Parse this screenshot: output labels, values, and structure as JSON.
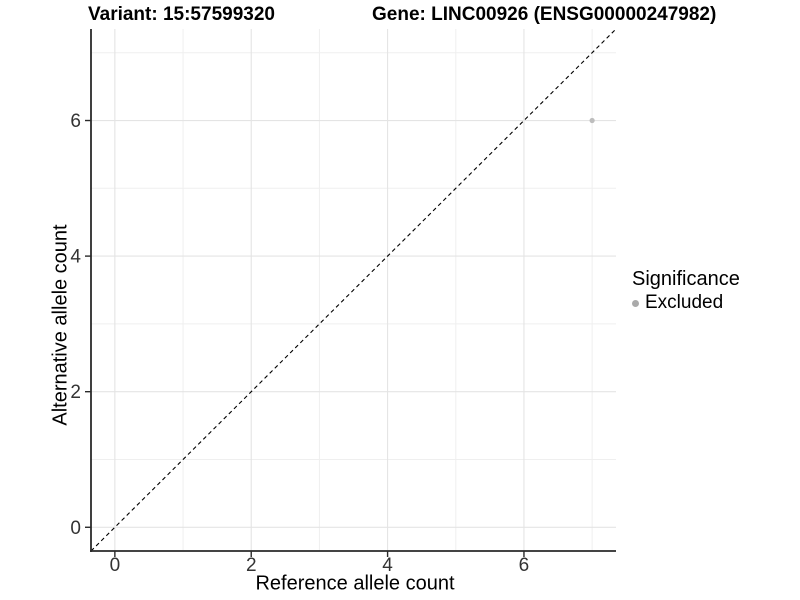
{
  "chart_data": {
    "type": "scatter",
    "titles": {
      "left": "Variant: 15:57599320",
      "right": "Gene: LINC00926 (ENSG00000247982)"
    },
    "xlabel": "Reference allele count",
    "ylabel": "Alternative allele count",
    "xlim": [
      -0.35,
      7.35
    ],
    "ylim": [
      -0.35,
      7.35
    ],
    "x_major_breaks": [
      0,
      2,
      4,
      6
    ],
    "x_minor_breaks": [
      1,
      3,
      5,
      7
    ],
    "y_major_breaks": [
      0,
      2,
      4,
      6
    ],
    "y_minor_breaks": [
      1,
      3,
      5,
      7
    ],
    "x_tick_labels": [
      "0",
      "2",
      "4",
      "6"
    ],
    "y_tick_labels": [
      "0",
      "2",
      "4",
      "6"
    ],
    "grid": true,
    "identity_line": {
      "style": "dashed",
      "slope": 1,
      "intercept": 0,
      "color": "#000000"
    },
    "series": [
      {
        "name": "Excluded",
        "color": "#bdbdbd",
        "points": [
          {
            "x": 7,
            "y": 6
          }
        ]
      }
    ],
    "legend": {
      "title": "Significance",
      "position": "right",
      "entries": [
        {
          "label": "Excluded",
          "color": "#aaaaaa"
        }
      ]
    },
    "colors": {
      "background": "#ffffff",
      "grid_major": "#e4e4e4",
      "grid_minor": "#efefef",
      "axis_line": "#2a2a2a",
      "tick_label": "#333333"
    }
  }
}
